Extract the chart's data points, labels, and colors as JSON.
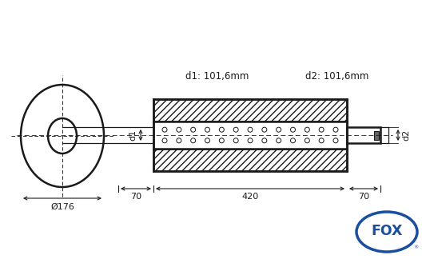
{
  "bg_color": "#ffffff",
  "line_color": "#1a1a1a",
  "fox_blue": "#1a4fa0",
  "title_d1": "d1: 101,6mm",
  "title_d2": "d2: 101,6mm",
  "label_d1": "d1",
  "label_d2": "d2",
  "label_dia": "Ø176",
  "dim_70_left": "70",
  "dim_420": "420",
  "dim_70_right": "70",
  "figsize": [
    5.33,
    3.44
  ],
  "dpi": 100,
  "xlim": [
    0,
    533
  ],
  "ylim": [
    0,
    344
  ]
}
